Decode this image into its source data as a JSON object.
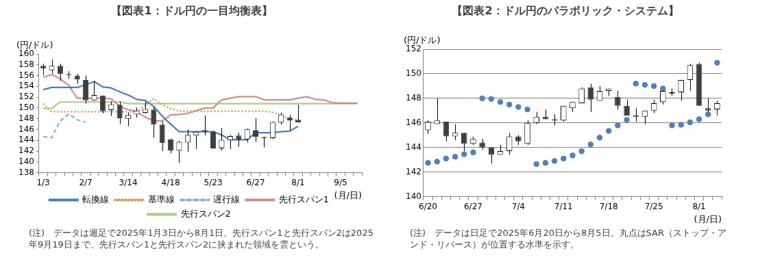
{
  "chart_data": [
    {
      "type": "candlestick",
      "title": "【図表1：ドル円の一目均衡表】",
      "ylabel": "(円/ドル)",
      "xlabel": "(月/日)",
      "annotations": [
        "(注)　データは週足で2025年1月3日から8月1日。先行スパン1と先行スパン2は2025年9月19日まで。先行スパン1と先行スパン2に挟まれた領域を雲という。"
      ],
      "categories": [
        "1/3",
        null,
        null,
        null,
        null,
        "2/7",
        null,
        null,
        null,
        null,
        "3/14",
        null,
        null,
        null,
        null,
        "4/18",
        null,
        null,
        null,
        null,
        "5/23",
        null,
        null,
        null,
        null,
        "6/27",
        null,
        null,
        null,
        null,
        "8/1",
        null,
        null,
        null,
        null,
        "9/5",
        null,
        null
      ],
      "ohlc": [
        [
          157.8,
          158.2,
          156.1,
          157.3
        ],
        [
          157.0,
          159.0,
          156.4,
          157.8
        ],
        [
          157.8,
          158.2,
          155.0,
          156.3
        ],
        [
          156.3,
          156.8,
          155.4,
          156.1
        ],
        [
          156.0,
          156.3,
          154.5,
          155.3
        ],
        [
          155.2,
          156.0,
          150.8,
          151.4
        ],
        [
          151.4,
          155.0,
          151.3,
          152.4
        ],
        [
          152.3,
          152.3,
          149.0,
          149.4
        ],
        [
          149.6,
          151.2,
          148.5,
          150.7
        ],
        [
          150.6,
          151.2,
          147.0,
          148.1
        ],
        [
          148.0,
          149.2,
          146.6,
          148.7
        ],
        [
          148.8,
          150.1,
          148.2,
          149.5
        ],
        [
          149.1,
          151.2,
          149.0,
          149.8
        ],
        [
          149.7,
          150.2,
          144.5,
          146.9
        ],
        [
          146.9,
          147.5,
          142.0,
          143.5
        ],
        [
          144.2,
          144.3,
          141.6,
          142.1
        ],
        [
          142.1,
          143.9,
          139.8,
          143.7
        ],
        [
          143.6,
          146.0,
          141.9,
          145.0
        ],
        [
          144.9,
          145.6,
          142.4,
          145.6
        ],
        [
          145.9,
          148.6,
          144.9,
          145.6
        ],
        [
          145.6,
          145.8,
          142.4,
          142.5
        ],
        [
          142.5,
          146.3,
          142.1,
          144.1
        ],
        [
          144.0,
          145.0,
          142.4,
          144.8
        ],
        [
          144.9,
          145.4,
          142.8,
          144.1
        ],
        [
          144.2,
          146.2,
          143.6,
          146.1
        ],
        [
          145.9,
          148.1,
          143.7,
          144.6
        ],
        [
          144.6,
          144.7,
          142.7,
          144.4
        ],
        [
          144.4,
          147.5,
          144.2,
          147.4
        ],
        [
          147.3,
          149.1,
          146.9,
          148.8
        ],
        [
          148.2,
          148.7,
          145.8,
          147.7
        ],
        [
          147.8,
          150.6,
          147.3,
          147.3
        ],
        null,
        null,
        null,
        null,
        null,
        null,
        null
      ],
      "series": [
        {
          "type": "line",
          "name": "転換線",
          "color": "#4a7ebb",
          "line_style": "solid",
          "values": [
            153.4,
            153.8,
            153.8,
            153.8,
            153.8,
            154.3,
            154.9,
            153.9,
            153.7,
            153.0,
            152.4,
            151.6,
            151.4,
            150.3,
            148.5,
            147.0,
            145.6,
            145.6,
            145.6,
            145.6,
            145.6,
            145.0,
            144.1,
            144.1,
            144.1,
            145.4,
            145.4,
            145.4,
            145.6,
            145.7,
            146.6,
            null,
            null,
            null,
            null,
            null,
            null,
            null
          ]
        },
        {
          "type": "line",
          "name": "基準線",
          "color": "#e0883a",
          "line_style": "dotted",
          "values": [
            150.8,
            149.3,
            149.3,
            149.3,
            149.3,
            149.3,
            149.3,
            149.3,
            149.3,
            149.3,
            149.3,
            149.3,
            150.5,
            151.7,
            150.6,
            149.9,
            149.4,
            149.4,
            149.4,
            149.4,
            149.4,
            149.4,
            149.4,
            149.4,
            149.4,
            149.4,
            149.4,
            149.2,
            148.6,
            148.0,
            147.7,
            null,
            null,
            null,
            null,
            null,
            null,
            null
          ]
        },
        {
          "type": "line",
          "name": "遅行線",
          "color": "#8ea9d8",
          "line_style": "dashed",
          "values": [
            144.7,
            144.5,
            147.6,
            148.9,
            147.8,
            147.4,
            null,
            null,
            null,
            null,
            null,
            null,
            null,
            null,
            null,
            null,
            null,
            null,
            null,
            null,
            null,
            null,
            null,
            null,
            null,
            null,
            null,
            null,
            null,
            null,
            null,
            null,
            null,
            null,
            null,
            null,
            null,
            null
          ]
        },
        {
          "type": "line",
          "name": "先行スパン1",
          "color": "#d38a8a",
          "line_style": "solid",
          "values": [
            155.7,
            156.2,
            155.4,
            154.2,
            151.8,
            151.8,
            151.8,
            151.8,
            151.7,
            150.3,
            149.7,
            149.3,
            148.3,
            147.6,
            147.6,
            148.7,
            148.8,
            149.0,
            149.5,
            150.0,
            150.0,
            151.5,
            151.8,
            152.1,
            152.1,
            152.1,
            151.5,
            151.5,
            151.5,
            151.5,
            151.8,
            152.1,
            151.6,
            151.5,
            151.0,
            150.9,
            150.9,
            150.9
          ]
        },
        {
          "type": "line",
          "name": "先行スパン2",
          "color": "#a9cb88",
          "line_style": "solid",
          "values": [
            149.9,
            149.9,
            151.1,
            151.1,
            151.1,
            151.1,
            151.1,
            151.1,
            151.1,
            151.1,
            150.8,
            150.8,
            150.8,
            150.8,
            150.8,
            150.8,
            150.8,
            150.8,
            150.8,
            150.8,
            150.8,
            150.8,
            150.8,
            150.8,
            150.8,
            150.8,
            150.8,
            150.8,
            150.8,
            150.8,
            150.8,
            150.8,
            150.8,
            150.8,
            150.8,
            150.8,
            150.8,
            150.8
          ]
        }
      ],
      "ylim": [
        138,
        160
      ],
      "yticks": [
        138,
        140,
        142,
        144,
        146,
        148,
        150,
        152,
        154,
        156,
        158,
        160
      ],
      "grid": false,
      "legend": "bottom"
    },
    {
      "type": "candlestick",
      "title": "【図表2：ドル円のパラボリック・システム】",
      "ylabel": "(円/ドル)",
      "xlabel": "(月/日)",
      "annotations": [
        "(注)　データは日足で2025年6月20日から8月5日。丸点はSAR（ストップ・アンド・リバース）が位置する水準を示す。"
      ],
      "categories": [
        "6/20",
        null,
        null,
        null,
        null,
        "6/27",
        null,
        null,
        null,
        null,
        "7/4",
        null,
        null,
        null,
        null,
        "7/11",
        null,
        null,
        null,
        null,
        "7/18",
        null,
        null,
        null,
        null,
        "7/25",
        null,
        null,
        null,
        null,
        "8/1",
        null,
        null
      ],
      "ohlc": [
        [
          145.4,
          146.2,
          145.1,
          146.1
        ],
        [
          145.9,
          148.0,
          145.9,
          146.2
        ],
        [
          146.1,
          146.1,
          144.5,
          144.9
        ],
        [
          144.9,
          145.9,
          144.6,
          145.2
        ],
        [
          145.2,
          145.2,
          143.7,
          144.3
        ],
        [
          144.3,
          144.9,
          144.2,
          144.7
        ],
        [
          144.4,
          144.7,
          143.8,
          144.0
        ],
        [
          144.0,
          144.0,
          142.7,
          143.4
        ],
        [
          143.4,
          144.2,
          143.4,
          143.7
        ],
        [
          143.7,
          145.2,
          143.4,
          144.9
        ],
        [
          144.9,
          145.0,
          144.2,
          144.5
        ],
        [
          144.3,
          146.2,
          144.2,
          146.0
        ],
        [
          146.0,
          146.9,
          145.9,
          146.5
        ],
        [
          146.5,
          147.1,
          146.3,
          146.3
        ],
        [
          146.3,
          146.7,
          145.8,
          146.2
        ],
        [
          146.2,
          147.4,
          146.1,
          147.4
        ],
        [
          147.2,
          147.7,
          146.9,
          147.7
        ],
        [
          147.6,
          148.9,
          147.6,
          148.8
        ],
        [
          148.9,
          149.2,
          146.9,
          147.9
        ],
        [
          147.8,
          149.0,
          147.8,
          148.6
        ],
        [
          148.6,
          148.8,
          148.2,
          148.8
        ],
        [
          148.1,
          148.6,
          147.1,
          147.4
        ],
        [
          147.4,
          147.9,
          146.6,
          146.6
        ],
        [
          146.6,
          147.2,
          146.1,
          146.5
        ],
        [
          146.5,
          147.0,
          145.9,
          147.0
        ],
        [
          147.0,
          147.9,
          146.8,
          147.6
        ],
        [
          147.7,
          148.6,
          147.5,
          148.6
        ],
        [
          148.4,
          148.8,
          148.2,
          148.5
        ],
        [
          148.5,
          149.5,
          147.8,
          149.5
        ],
        [
          149.5,
          150.8,
          148.6,
          150.7
        ],
        [
          150.8,
          150.9,
          147.4,
          147.4
        ],
        [
          147.2,
          148.0,
          146.9,
          147.0
        ],
        [
          147.1,
          147.8,
          146.6,
          147.6
        ]
      ],
      "series": [
        {
          "type": "scatter",
          "color": "#4f81bd",
          "marker": "circle",
          "values": [
            142.75,
            142.85,
            143.1,
            143.25,
            143.45,
            143.6,
            148.0,
            147.95,
            147.7,
            147.5,
            147.3,
            147.1,
            142.65,
            142.75,
            142.9,
            143.1,
            143.35,
            143.7,
            144.25,
            144.8,
            145.35,
            145.8,
            146.25,
            149.2,
            149.1,
            149.0,
            148.8,
            145.8,
            145.85,
            146.05,
            146.3,
            146.7,
            150.9
          ]
        }
      ],
      "ylim": [
        140,
        152
      ],
      "yticks": [
        140,
        142,
        144,
        146,
        148,
        150,
        152
      ],
      "grid": "y"
    }
  ]
}
